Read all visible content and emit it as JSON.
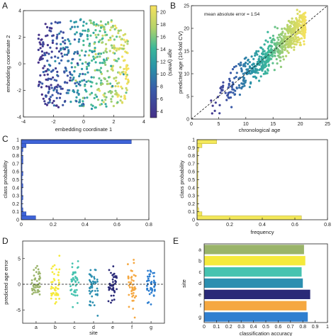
{
  "panels": {
    "A": {
      "letter": "A",
      "xlabel": "embedding coordinate 1",
      "ylabel": "embedding coordinate 2",
      "xticks": [
        "-4",
        "-2",
        "0",
        "2",
        "4"
      ],
      "yticks": [
        "-4",
        "-2",
        "0",
        "2",
        "4"
      ],
      "colorbar_label": "age (years)",
      "colorbar_ticks": [
        "4",
        "6",
        "8",
        "10",
        "12",
        "14",
        "16",
        "18",
        "20"
      ]
    },
    "B": {
      "letter": "B",
      "xlabel": "chronological age",
      "ylabel": "predicted age (10-fold CV)",
      "annotation": "mean absolute error = 1.54",
      "xticks": [
        "0",
        "5",
        "10",
        "15",
        "20",
        "25"
      ],
      "yticks": [
        "0",
        "5",
        "10",
        "15",
        "20",
        "25"
      ]
    },
    "C": {
      "letter": "C",
      "ylabel": "class probability",
      "xticks": [
        "0",
        "0.2",
        "0.4",
        "0.6",
        "0.8"
      ],
      "yticks": [
        "0",
        "0.1",
        "0.2",
        "0.3",
        "0.4",
        "0.5",
        "0.6",
        "0.7",
        "0.8",
        "0.9",
        "1"
      ]
    },
    "C2": {
      "xlabel": "frequency",
      "ylabel": "class probability",
      "xticks": [
        "0",
        "0.2",
        "0.4",
        "0.6",
        "0.8"
      ],
      "yticks": [
        "0",
        "0.1",
        "0.2",
        "0.3",
        "0.4",
        "0.5",
        "0.6",
        "0.7",
        "0.8",
        "0.9",
        "1"
      ]
    },
    "D": {
      "letter": "D",
      "xlabel": "site",
      "ylabel": "predicted age error",
      "yticks": [
        "-5",
        "0",
        "5"
      ]
    },
    "E": {
      "letter": "E",
      "xlabel": "classification accuracy",
      "ylabel": "site",
      "xticks": [
        "0",
        "0.1",
        "0.2",
        "0.3",
        "0.4",
        "0.5",
        "0.6",
        "0.7",
        "0.8",
        "0.9",
        "1"
      ]
    }
  },
  "colors": {
    "viridis_low": "#3d2c8f",
    "viridis_mid": "#2aa6a0",
    "viridis_high": "#f7e25d",
    "blue_hist": "#3e63d8",
    "yellow_hist": "#f3e85a",
    "site_a": "#9ab46a",
    "site_b": "#f5ea3c",
    "site_c": "#47c3b0",
    "site_d": "#2c8fb0",
    "site_e": "#2a2a78",
    "site_f": "#f5a841",
    "site_g": "#2f7fd0"
  },
  "chart_data": [
    {
      "type": "scatter",
      "panel": "A",
      "xlabel": "embedding coordinate 1",
      "ylabel": "embedding coordinate 2",
      "xlim": [
        -4,
        4
      ],
      "ylim": [
        -4,
        4
      ],
      "colorbar": {
        "label": "age (years)",
        "range": [
          3,
          21
        ]
      },
      "clusters": [
        {
          "x_range": [
            -3,
            3
          ],
          "y_range": [
            -3.4,
            3.4
          ],
          "age_range": [
            3,
            21
          ],
          "note": "age increases left to right"
        }
      ]
    },
    {
      "type": "scatter",
      "panel": "B",
      "xlabel": "chronological age",
      "ylabel": "predicted age (10-fold CV)",
      "xlim": [
        0,
        25
      ],
      "ylim": [
        0,
        25
      ],
      "x_range": [
        3.5,
        21
      ],
      "fit": "identity",
      "mean_absolute_error": 1.54,
      "reference_line": {
        "style": "dashed",
        "from": [
          0,
          0
        ],
        "to": [
          25,
          25
        ]
      }
    },
    {
      "type": "bar",
      "panel": "C",
      "orientation": "horizontal",
      "ylabel": "class probability",
      "xlim": [
        0,
        0.8
      ],
      "ylim": [
        0,
        1
      ],
      "bins": [
        0.025,
        0.075,
        0.125,
        0.175,
        0.225,
        0.275,
        0.325,
        0.375,
        0.425,
        0.475,
        0.525,
        0.575,
        0.625,
        0.675,
        0.725,
        0.775,
        0.825,
        0.875,
        0.925,
        0.975
      ],
      "values": [
        0.09,
        0.03,
        0.01,
        0.005,
        0.005,
        0.01,
        0.005,
        0.005,
        0.01,
        0.005,
        0.005,
        0.01,
        0.005,
        0.005,
        0.01,
        0.01,
        0.005,
        0.01,
        0.03,
        0.69
      ]
    },
    {
      "type": "bar",
      "panel": "C2",
      "orientation": "horizontal",
      "xlabel": "frequency",
      "ylabel": "class probability",
      "xlim": [
        0,
        0.8
      ],
      "ylim": [
        0,
        1
      ],
      "bins": [
        0.025,
        0.075,
        0.125,
        0.175,
        0.225,
        0.275,
        0.325,
        0.375,
        0.425,
        0.475,
        0.525,
        0.575,
        0.625,
        0.675,
        0.725,
        0.775,
        0.825,
        0.875,
        0.925,
        0.975
      ],
      "values": [
        0.64,
        0.03,
        0.01,
        0.005,
        0.005,
        0.005,
        0.005,
        0.005,
        0.005,
        0.005,
        0.005,
        0.005,
        0.005,
        0.005,
        0.005,
        0.005,
        0.005,
        0.01,
        0.03,
        0.12
      ]
    },
    {
      "type": "scatter",
      "panel": "D",
      "xlabel": "site",
      "ylabel": "predicted age error",
      "categories": [
        "a",
        "b",
        "c",
        "d",
        "e",
        "f",
        "g"
      ],
      "ylim": [
        -8,
        8
      ],
      "reference_line": {
        "style": "dashed",
        "y": 0
      },
      "series_spread": [
        4,
        4.5,
        4.5,
        4.5,
        4,
        4.5,
        4
      ]
    },
    {
      "type": "bar",
      "panel": "E",
      "orientation": "horizontal",
      "xlabel": "classification accuracy",
      "ylabel": "site",
      "categories": [
        "a",
        "b",
        "c",
        "d",
        "e",
        "f",
        "g"
      ],
      "values": [
        0.81,
        0.82,
        0.79,
        0.8,
        0.86,
        0.83,
        0.84
      ],
      "xlim": [
        0,
        1
      ]
    }
  ]
}
